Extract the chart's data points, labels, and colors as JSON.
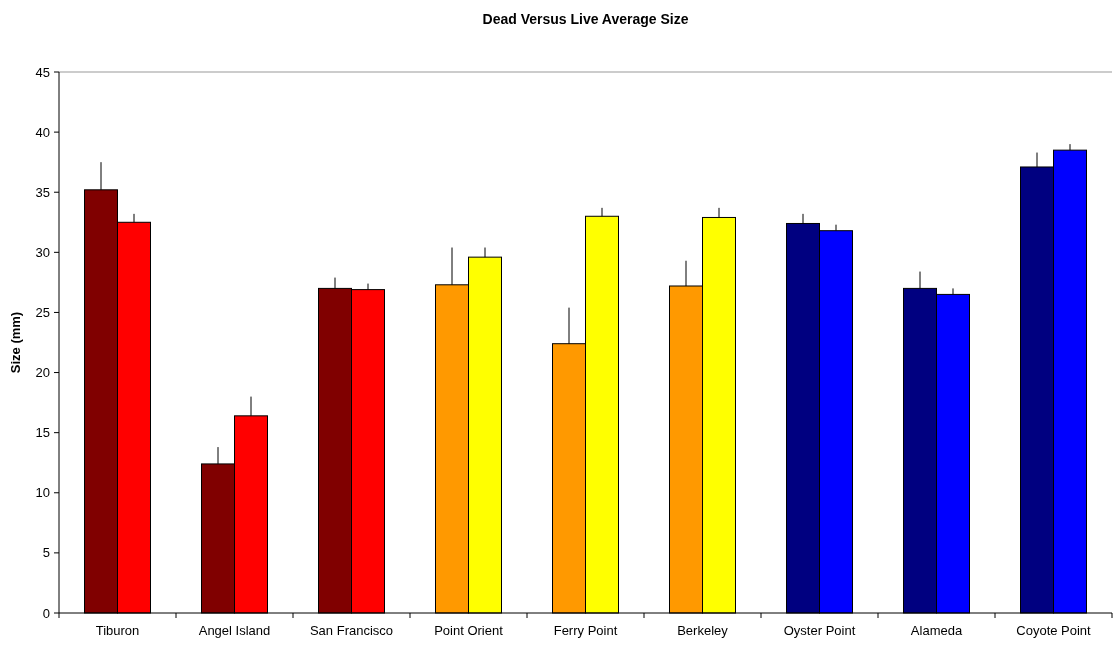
{
  "chart_data": {
    "type": "bar",
    "title": "Dead Versus Live Average Size",
    "ylabel": "Size (mm)",
    "categories": [
      "Tiburon",
      "Angel Island",
      "San Francisco",
      "Point Orient",
      "Ferry Point",
      "Berkeley",
      "Oyster Point",
      "Alameda",
      "Coyote Point"
    ],
    "series": [
      {
        "colors": [
          "#800000",
          "#800000",
          "#800000",
          "#ff9900",
          "#ff9900",
          "#ff9900",
          "#000080",
          "#000080",
          "#000080"
        ],
        "values": [
          35.2,
          12.4,
          27.0,
          27.3,
          22.4,
          27.2,
          32.4,
          27.0,
          37.1
        ],
        "errors": [
          [
            35.2,
            37.5
          ],
          [
            12.4,
            13.8
          ],
          [
            27.0,
            27.9
          ],
          [
            27.3,
            30.4
          ],
          [
            22.4,
            25.4
          ],
          [
            27.2,
            29.3
          ],
          [
            32.4,
            33.2
          ],
          [
            27.0,
            28.4
          ],
          [
            37.1,
            38.3
          ]
        ]
      },
      {
        "colors": [
          "#ff0000",
          "#ff0000",
          "#ff0000",
          "#ffff00",
          "#ffff00",
          "#ffff00",
          "#0000ff",
          "#0000ff",
          "#0000ff"
        ],
        "values": [
          32.5,
          16.4,
          26.9,
          29.6,
          33.0,
          32.9,
          31.8,
          26.5,
          38.5
        ],
        "errors": [
          [
            32.5,
            33.2
          ],
          [
            16.4,
            18.0
          ],
          [
            26.9,
            27.4
          ],
          [
            29.6,
            30.4
          ],
          [
            33.0,
            33.7
          ],
          [
            32.9,
            33.7
          ],
          [
            31.8,
            32.3
          ],
          [
            26.5,
            27.0
          ],
          [
            38.5,
            39.0
          ]
        ]
      }
    ],
    "ylim": [
      0,
      45
    ],
    "yticks": [
      0,
      5,
      10,
      15,
      20,
      25,
      30,
      35,
      40,
      45
    ],
    "grid": false
  }
}
